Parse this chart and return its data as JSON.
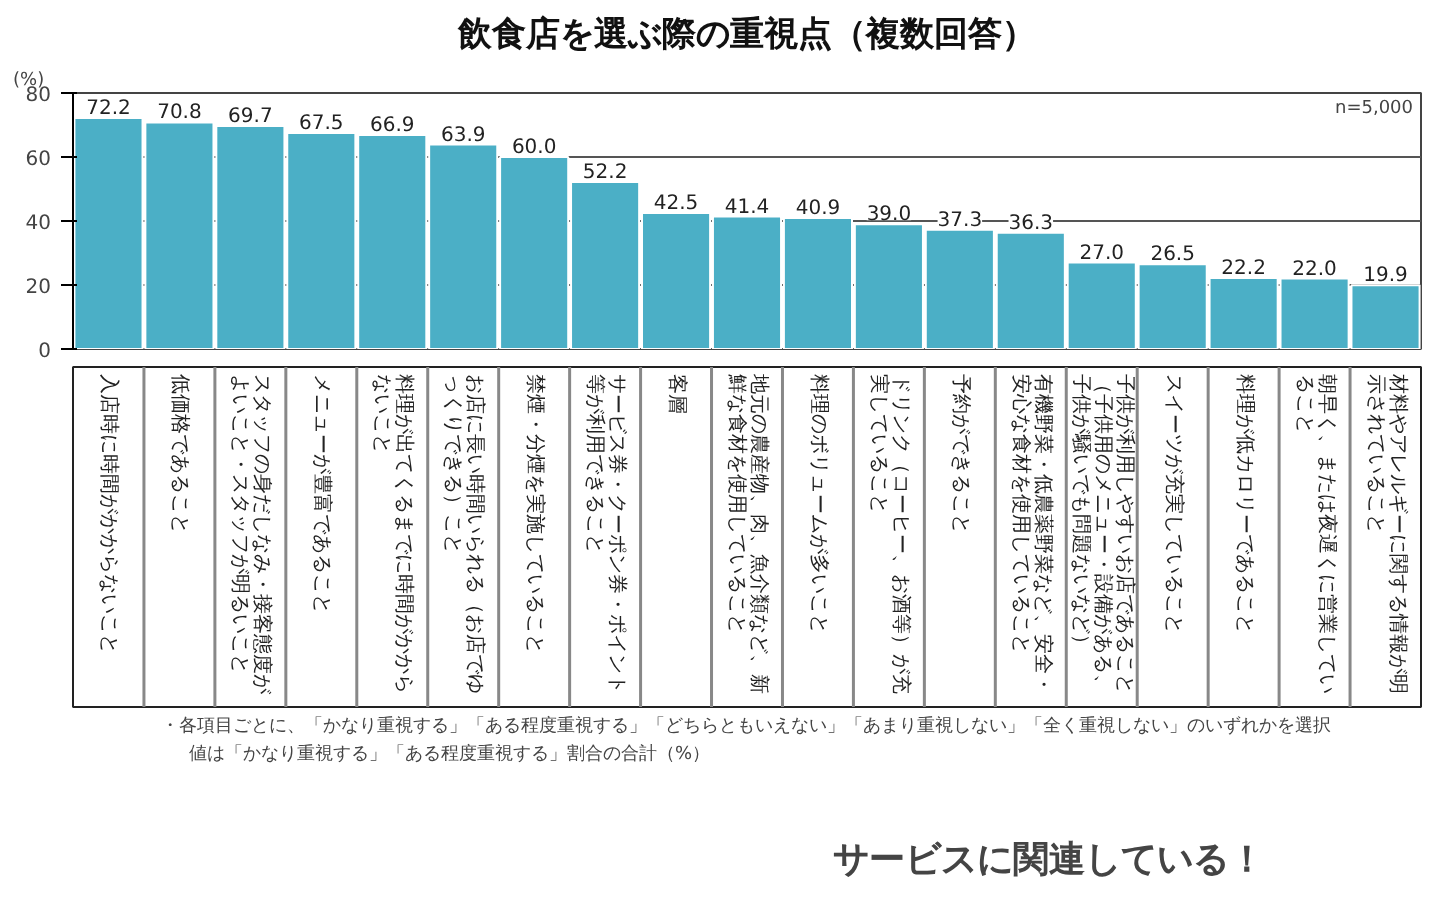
{
  "chart_data": {
    "type": "bar",
    "title": "飲食店を選ぶ際の重視点（複数回答）",
    "ylabel": "(%)",
    "categories": [
      "入店時に時間がかからないこと",
      "低価格であること",
      "スタッフの身だしなみ・接客態度がよいこと・スタッフが明るいこと",
      "メニューが豊富であること",
      "料理が出てくるまでに時間がかからないこと",
      "お店に長い時間いられる（お店でゆっくりできる）こと",
      "禁煙・分煙を実施していること",
      "サービス券・クーポン券・ポイント等が利用できること",
      "客層",
      "地元の農産物、肉、魚介類など、新鮮な食材を使用していること",
      "料理のボリュームが多いこと",
      "ドリンク（コーヒー、お酒等）が充実していること",
      "予約ができること",
      "有機野菜・低農薬野菜など、安全・安心な食材を使用していること",
      "子供が利用しやすいお店であること（子供用のメニュー・設備がある、子供が騒いでも問題ないなど）",
      "スイーツが充実していること",
      "料理が低カロリーであること",
      "朝早く、または夜遅くに営業していること",
      "材料やアレルギーに関する情報が明示されていること"
    ],
    "values": [
      72.2,
      70.8,
      69.7,
      67.5,
      66.9,
      63.9,
      60.0,
      52.2,
      42.5,
      41.4,
      40.9,
      39.0,
      37.3,
      36.3,
      27.0,
      26.5,
      22.2,
      22.0,
      19.9
    ],
    "value_labels": [
      "72.2",
      "70.8",
      "69.7",
      "67.5",
      "66.9",
      "63.9",
      "60.0",
      "52.2",
      "42.5",
      "41.4",
      "40.9",
      "39.0",
      "37.3",
      "36.3",
      "27.0",
      "26.5",
      "22.2",
      "22.0",
      "19.9"
    ],
    "color": "#4bafc6",
    "ylim": [
      0,
      80
    ],
    "yticks": [
      0,
      20,
      40,
      60,
      80
    ],
    "grid": "y",
    "annotations": [
      "n=5,000",
      "・各項目ごとに、「かなり重視する」「ある程度重視する」「どちらともいえない」「あまり重視しない」「全く重視しない」のいずれかを選択",
      "値は「かなり重視する」「ある程度重視する」割合の合計（%）",
      "サービスに関連している！"
    ]
  }
}
